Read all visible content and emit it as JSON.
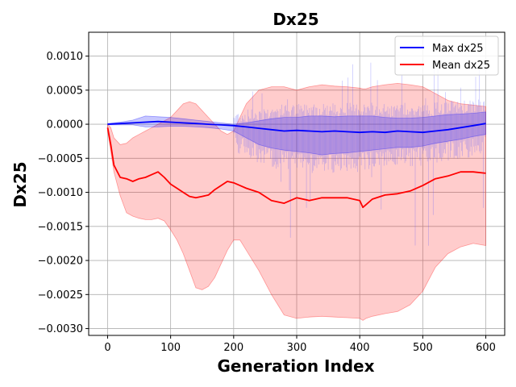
{
  "chart_data": {
    "type": "line",
    "title": "Dx25",
    "xlabel": "Generation Index",
    "ylabel": "Dx25",
    "xlim": [
      -30,
      630
    ],
    "ylim": [
      -0.0031,
      0.00135
    ],
    "xticks": [
      0,
      100,
      200,
      300,
      400,
      500,
      600
    ],
    "xtick_labels": [
      "0",
      "100",
      "200",
      "300",
      "400",
      "500",
      "600"
    ],
    "yticks": [
      -0.003,
      -0.0025,
      -0.002,
      -0.0015,
      -0.001,
      -0.0005,
      0.0,
      0.0005,
      0.001
    ],
    "ytick_labels": [
      "−0.0030",
      "−0.0025",
      "−0.0020",
      "−0.0015",
      "−0.0010",
      "−0.0005",
      "0.0000",
      "0.0005",
      "0.0010"
    ],
    "grid": true,
    "legend_position": "upper right",
    "series": [
      {
        "name": "Max dx25",
        "color": "#0000ff",
        "x": [
          0,
          20,
          40,
          60,
          80,
          100,
          120,
          140,
          160,
          180,
          200,
          220,
          240,
          260,
          280,
          300,
          320,
          340,
          360,
          380,
          400,
          420,
          440,
          460,
          480,
          500,
          520,
          540,
          560,
          580,
          600
        ],
        "values": [
          0.0,
          1e-05,
          2e-05,
          3e-05,
          4e-05,
          3e-05,
          2e-05,
          1e-05,
          0.0,
          -1e-05,
          -2e-05,
          -4e-05,
          -6e-05,
          -8e-05,
          -0.0001,
          -9e-05,
          -0.0001,
          -0.00011,
          -0.0001,
          -0.00011,
          -0.00012,
          -0.00011,
          -0.00012,
          -0.0001,
          -0.00011,
          -0.00012,
          -0.0001,
          -8e-05,
          -5e-05,
          -2e-05,
          1e-05
        ],
        "band_upper": [
          1e-05,
          3e-05,
          6e-05,
          0.00012,
          0.00011,
          0.0001,
          8e-05,
          6e-05,
          4e-05,
          2e-05,
          0.0,
          2e-05,
          5e-05,
          8e-05,
          0.0001,
          0.0001,
          0.00012,
          0.00012,
          0.00011,
          0.00012,
          0.00012,
          0.00012,
          0.0001,
          9e-05,
          9e-05,
          0.0001,
          0.00012,
          0.00014,
          0.00015,
          0.00016,
          0.00018
        ],
        "band_lower": [
          -1e-05,
          -1e-05,
          -1e-05,
          -4e-05,
          -4e-05,
          -3e-05,
          -3e-05,
          -4e-05,
          -5e-05,
          -7e-05,
          -0.0001,
          -0.0002,
          -0.0003,
          -0.00035,
          -0.00038,
          -0.0004,
          -0.00042,
          -0.00045,
          -0.00043,
          -0.00042,
          -0.0004,
          -0.00038,
          -0.00036,
          -0.00034,
          -0.00034,
          -0.00032,
          -0.00028,
          -0.00025,
          -0.00022,
          -0.00018,
          -0.00015
        ]
      },
      {
        "name": "Mean dx25",
        "color": "#ff0000",
        "x": [
          0,
          5,
          10,
          20,
          30,
          40,
          50,
          60,
          70,
          80,
          90,
          100,
          110,
          120,
          130,
          140,
          150,
          160,
          170,
          180,
          190,
          200,
          210,
          220,
          240,
          260,
          280,
          300,
          320,
          340,
          360,
          380,
          400,
          405,
          410,
          420,
          440,
          460,
          480,
          500,
          520,
          540,
          560,
          580,
          600
        ],
        "values": [
          -5e-05,
          -0.0003,
          -0.0006,
          -0.00078,
          -0.0008,
          -0.00084,
          -0.0008,
          -0.00078,
          -0.00074,
          -0.0007,
          -0.00078,
          -0.00088,
          -0.00094,
          -0.001,
          -0.00106,
          -0.00108,
          -0.00106,
          -0.00104,
          -0.00096,
          -0.0009,
          -0.00084,
          -0.00086,
          -0.0009,
          -0.00094,
          -0.001,
          -0.00112,
          -0.00116,
          -0.00108,
          -0.00112,
          -0.00108,
          -0.00108,
          -0.00108,
          -0.00112,
          -0.00122,
          -0.00118,
          -0.0011,
          -0.00104,
          -0.00102,
          -0.00098,
          -0.0009,
          -0.0008,
          -0.00076,
          -0.0007,
          -0.0007,
          -0.00072
        ],
        "band_upper": [
          0.0,
          -5e-05,
          -0.0002,
          -0.0003,
          -0.00028,
          -0.0002,
          -0.00015,
          -0.0001,
          -5e-05,
          0.0,
          5e-05,
          0.0001,
          0.0002,
          0.0003,
          0.00033,
          0.0003,
          0.0002,
          0.0001,
          0.0,
          -0.0001,
          -0.00015,
          -0.0001,
          0.0001,
          0.0003,
          0.0005,
          0.00055,
          0.00055,
          0.0005,
          0.00055,
          0.00058,
          0.00056,
          0.00055,
          0.00053,
          0.00052,
          0.00052,
          0.00055,
          0.00058,
          0.0006,
          0.00058,
          0.00055,
          0.00045,
          0.00035,
          0.0003,
          0.00028,
          0.00026
        ],
        "band_lower": [
          -0.0001,
          -0.0004,
          -0.0007,
          -0.00105,
          -0.0013,
          -0.00135,
          -0.00138,
          -0.0014,
          -0.0014,
          -0.00138,
          -0.00142,
          -0.00155,
          -0.0017,
          -0.0019,
          -0.00215,
          -0.0024,
          -0.00243,
          -0.00238,
          -0.00225,
          -0.00205,
          -0.00185,
          -0.0017,
          -0.0017,
          -0.00185,
          -0.00215,
          -0.0025,
          -0.0028,
          -0.00285,
          -0.00283,
          -0.00282,
          -0.00283,
          -0.00284,
          -0.00285,
          -0.00288,
          -0.00285,
          -0.00282,
          -0.00278,
          -0.00275,
          -0.00265,
          -0.00245,
          -0.0021,
          -0.0019,
          -0.0018,
          -0.00175,
          -0.00178
        ]
      }
    ]
  }
}
